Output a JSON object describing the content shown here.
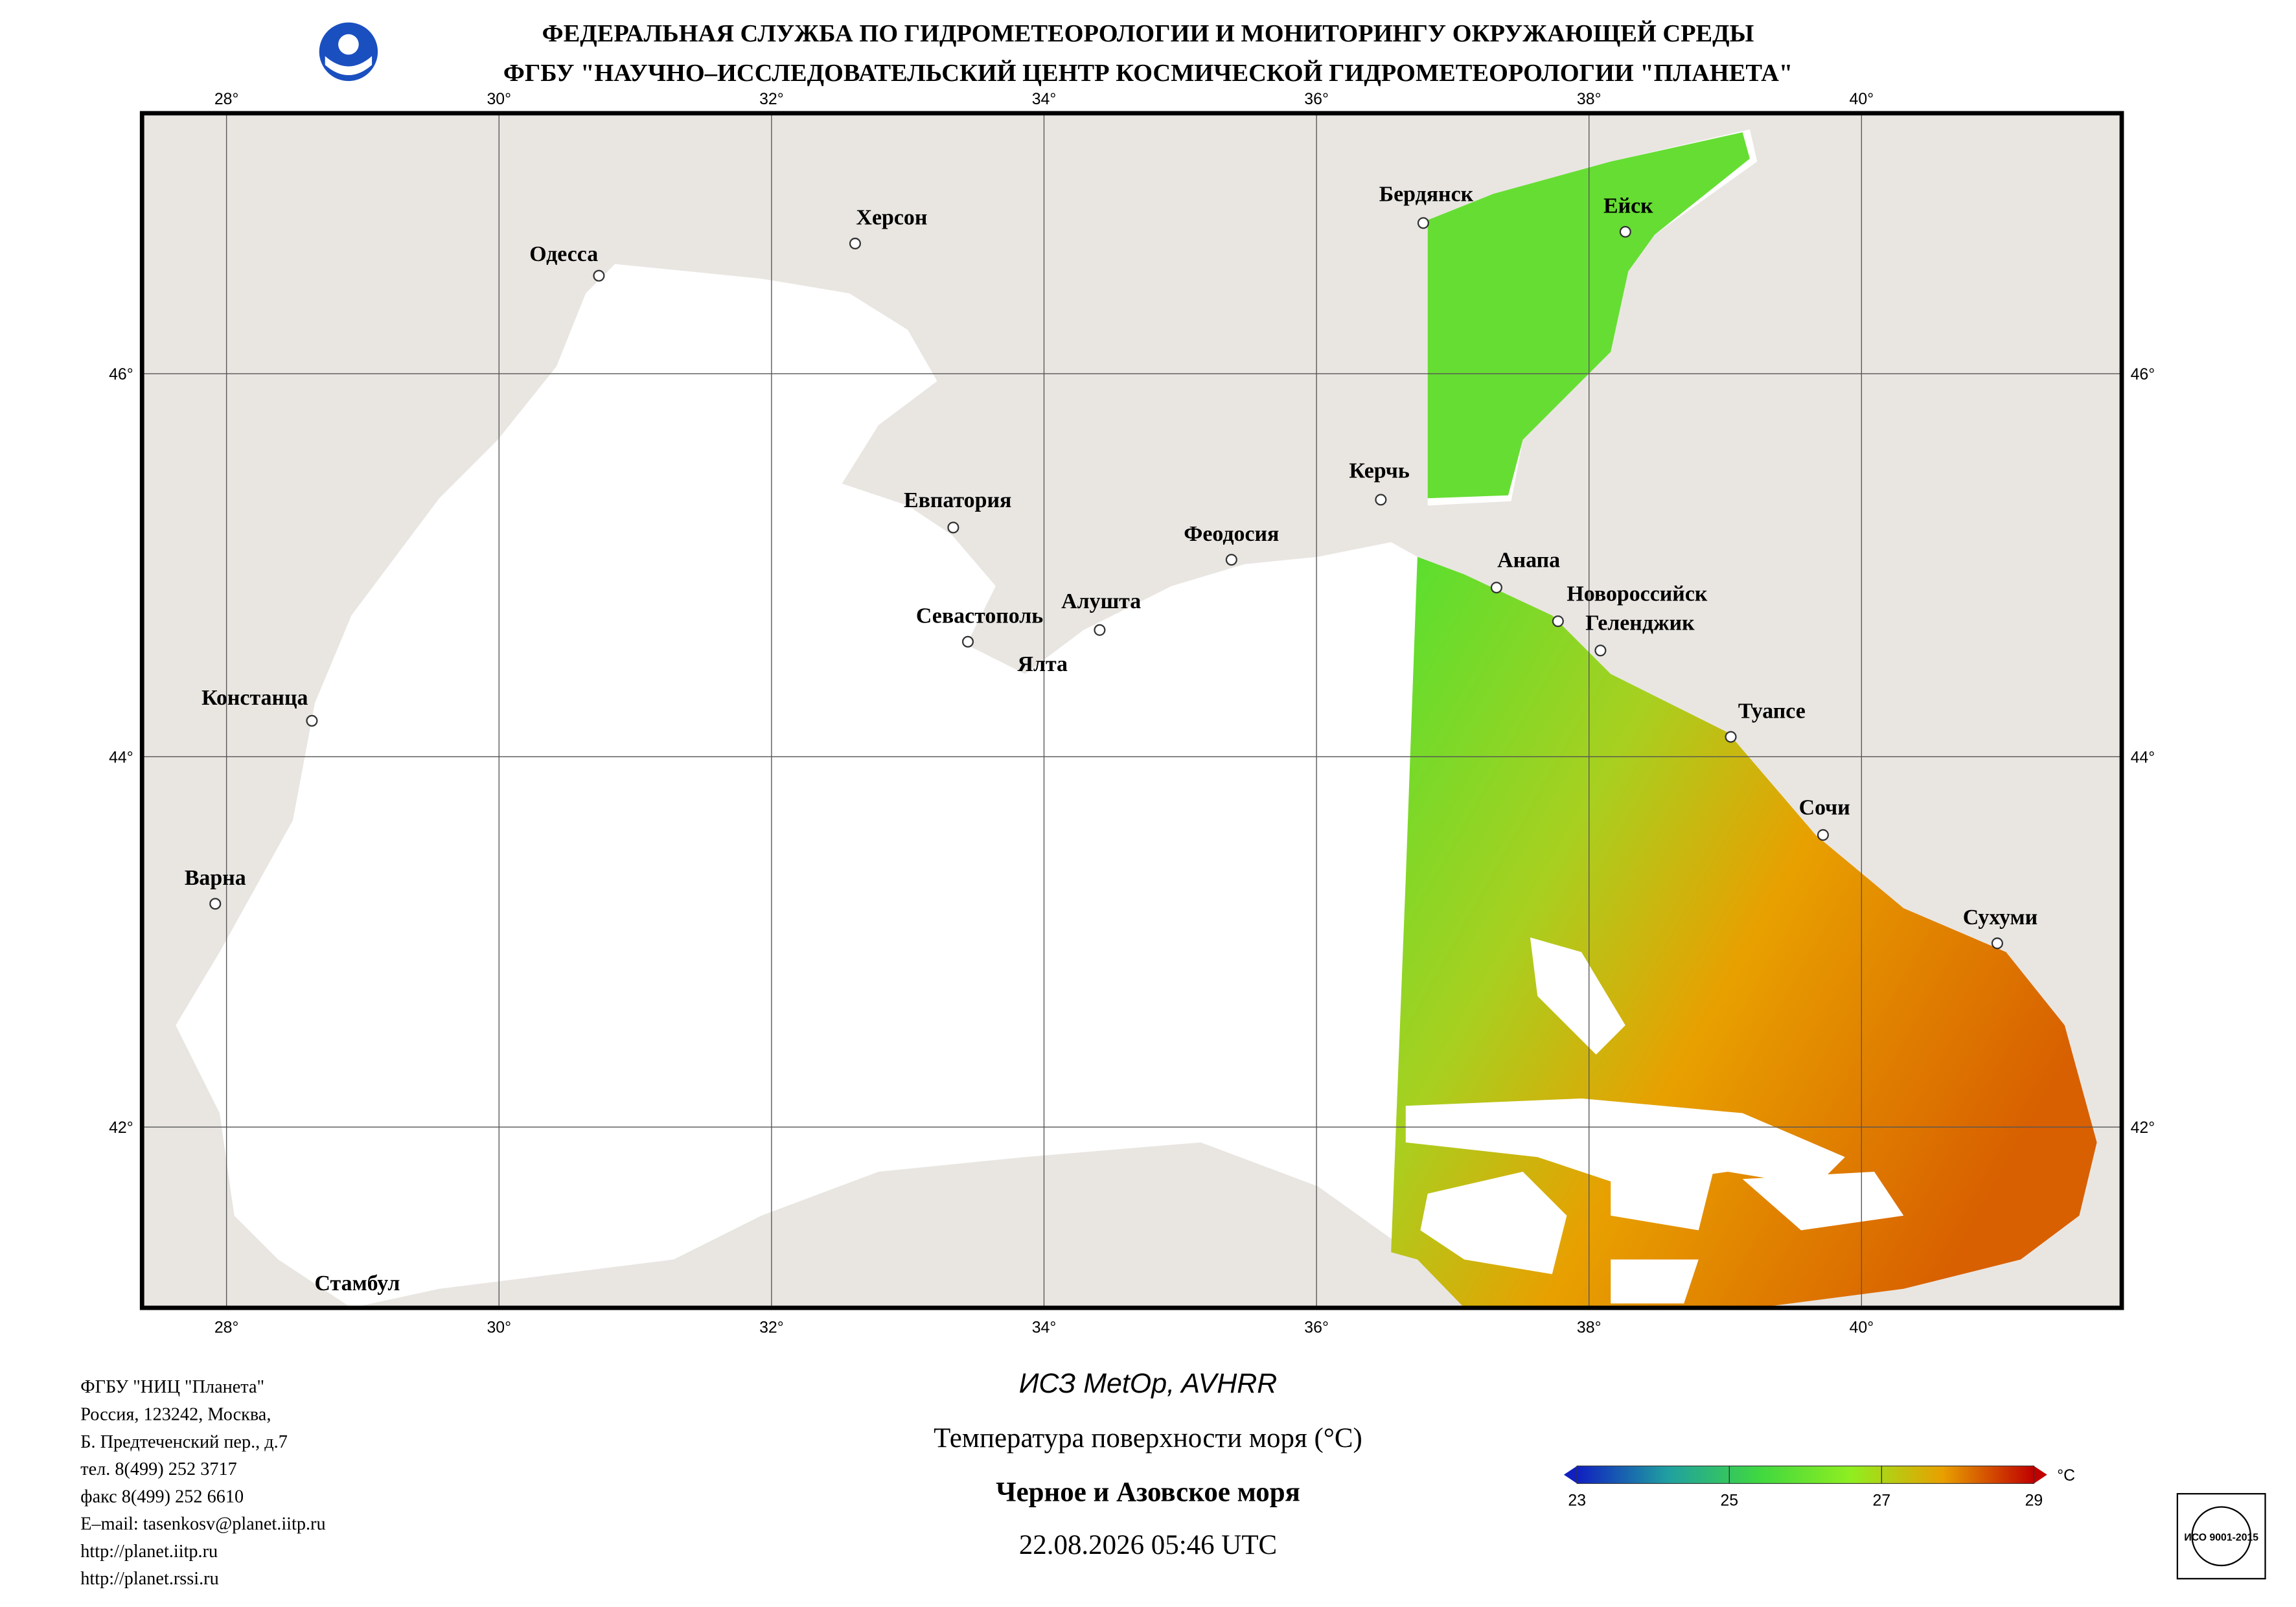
{
  "header": {
    "title_line1": "ФЕДЕРАЛЬНАЯ СЛУЖБА ПО ГИДРОМЕТЕОРОЛОГИИ И МОНИТОРИНГУ ОКРУЖАЮЩЕЙ СРЕДЫ",
    "title_line2": "ФГБУ \"НАУЧНО–ИССЛЕДОВАТЕЛЬСКИЙ ЦЕНТР КОСМИЧЕСКОЙ ГИДРОМЕТЕОРОЛОГИИ \"ПЛАНЕТА\""
  },
  "map": {
    "lon_range": [
      27.38,
      41.91
    ],
    "lat_range": [
      41.0,
      47.32
    ],
    "lon_ticks": [
      {
        "value": 28,
        "label": "28°"
      },
      {
        "value": 30,
        "label": "30°"
      },
      {
        "value": 32,
        "label": "32°"
      },
      {
        "value": 34,
        "label": "34°"
      },
      {
        "value": 36,
        "label": "36°"
      },
      {
        "value": 38,
        "label": "38°"
      },
      {
        "value": 40,
        "label": "40°"
      }
    ],
    "lat_ticks": [
      {
        "value": 46,
        "label": "46°"
      },
      {
        "value": 44,
        "label": "44°"
      },
      {
        "value": 42,
        "label": "42°"
      }
    ],
    "cities": [
      "Бердянск",
      "Ейск",
      "Херсон",
      "Одесса",
      "Керчь",
      "Евпатория",
      "Феодосия",
      "Анапа",
      "Новороссийск",
      "Геленджик",
      "Алушта",
      "Севастополь",
      "Ялта",
      "Констанца",
      "Туапсе",
      "Сочи",
      "Варна",
      "Сухуми",
      "Стамбул"
    ]
  },
  "footer": {
    "address": [
      "ФГБУ \"НИЦ \"Планета\"",
      "Россия, 123242, Москва,",
      "Б. Предтеченский пер., д.7",
      "тел. 8(499) 252 3717",
      "факс 8(499) 252 6610",
      "E–mail: tasenkosv@planet.iitp.ru",
      "http://planet.iitp.ru",
      "http://planet.rssi.ru"
    ],
    "satellite": "ИСЗ MetOp, AVHRR",
    "product": "Температура поверхности моря (°C)",
    "region": "Черное и Азовское моря",
    "datetime": "22.08.2026 05:46 UTC"
  },
  "colorbar": {
    "range": [
      23,
      29
    ],
    "ticks": [
      23,
      25,
      27,
      29
    ],
    "unit": "°C",
    "colors": [
      "#1020c0",
      "#20a0a0",
      "#40d840",
      "#90ee20",
      "#e8a000",
      "#c00000"
    ]
  },
  "certificate": "ИСО 9001-2015"
}
